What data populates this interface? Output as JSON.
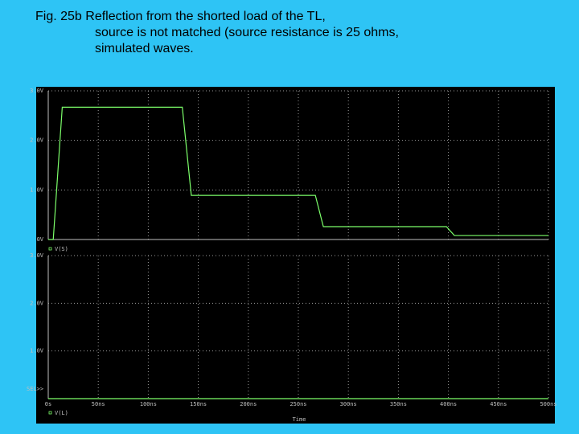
{
  "slide_title": [
    "Fig. 25b  Reflection from the shorted load of the TL,",
    "source is not matched (source resistance is 25 ohms,",
    "simulated waves."
  ],
  "sel_label": "SEL>>",
  "x_label": "Time",
  "chart_data": [
    {
      "type": "line",
      "series": [
        {
          "name": "V(S)",
          "color": "#7cff6a",
          "x": [
            0,
            5,
            14,
            134,
            143,
            267,
            275,
            398,
            406,
            500
          ],
          "values": [
            0,
            0,
            2.67,
            2.67,
            0.89,
            0.89,
            0.26,
            0.26,
            0.08,
            0.08
          ]
        }
      ],
      "xlim": [
        0,
        500
      ],
      "xticks": [
        0,
        50,
        100,
        150,
        200,
        250,
        300,
        350,
        400,
        450,
        500
      ],
      "ylim": [
        0,
        3
      ],
      "yticks": [
        {
          "value": 0,
          "label": "0V"
        },
        {
          "value": 1,
          "label": "1.0V"
        },
        {
          "value": 2,
          "label": "2.0V"
        },
        {
          "value": 3,
          "label": "3.0V"
        }
      ],
      "grid": true
    },
    {
      "type": "line",
      "series": [
        {
          "name": "V(L)",
          "color": "#7cff6a",
          "x": [
            0,
            500
          ],
          "values": [
            0,
            0
          ]
        }
      ],
      "xlim": [
        0,
        500
      ],
      "xticks": [
        {
          "value": 0,
          "label": "0s"
        },
        {
          "value": 50,
          "label": "50ns"
        },
        {
          "value": 100,
          "label": "100ns"
        },
        {
          "value": 150,
          "label": "150ns"
        },
        {
          "value": 200,
          "label": "200ns"
        },
        {
          "value": 250,
          "label": "250ns"
        },
        {
          "value": 300,
          "label": "300ns"
        },
        {
          "value": 350,
          "label": "350ns"
        },
        {
          "value": 400,
          "label": "400ns"
        },
        {
          "value": 450,
          "label": "450ns"
        },
        {
          "value": 500,
          "label": "500ns"
        }
      ],
      "ylim": [
        0,
        3
      ],
      "yticks": [
        {
          "value": 1,
          "label": "1.0V"
        },
        {
          "value": 2,
          "label": "2.0V"
        },
        {
          "value": 3,
          "label": "3.0V"
        }
      ],
      "grid": true
    }
  ]
}
